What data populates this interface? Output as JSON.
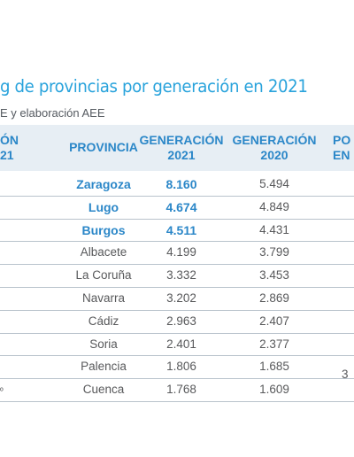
{
  "title": "g de provincias por generación en 2021",
  "subtitle": "E y elaboración AEE",
  "headers": {
    "col_rank_line1": "ÓN",
    "col_rank_line2": "21",
    "col_provincia": "PROVINCIA",
    "col_gen2021_line1": "GENERACIÓN",
    "col_gen2021_line2": "2021",
    "col_gen2020_line1": "GENERACIÓN",
    "col_gen2020_line2": "2020",
    "col_pos_line1": "PO",
    "col_pos_line2": "EN"
  },
  "rows": [
    {
      "provincia": "Zaragoza",
      "gen2021": "8.160",
      "gen2020": "5.494",
      "highlight": true
    },
    {
      "provincia": "Lugo",
      "gen2021": "4.674",
      "gen2020": "4.849",
      "highlight": true
    },
    {
      "provincia": "Burgos",
      "gen2021": "4.511",
      "gen2020": "4.431",
      "highlight": true
    },
    {
      "provincia": "Albacete",
      "gen2021": "4.199",
      "gen2020": "3.799",
      "highlight": false
    },
    {
      "provincia": "La Coruña",
      "gen2021": "3.332",
      "gen2020": "3.453",
      "highlight": false
    },
    {
      "provincia": "Navarra",
      "gen2021": "3.202",
      "gen2020": "2.869",
      "highlight": false
    },
    {
      "provincia": "Cádiz",
      "gen2021": "2.963",
      "gen2020": "2.407",
      "highlight": false
    },
    {
      "provincia": "Soria",
      "gen2021": "2.401",
      "gen2020": "2.377",
      "highlight": false
    },
    {
      "provincia": "Palencia",
      "gen2021": "1.806",
      "gen2020": "1.685",
      "highlight": false
    },
    {
      "provincia": "Cuenca",
      "gen2021": "1.768",
      "gen2020": "1.609",
      "highlight": false
    }
  ],
  "partial_cells": {
    "palencia_pos_fragment": "3",
    "cuenca_rank_fragment": "º"
  }
}
